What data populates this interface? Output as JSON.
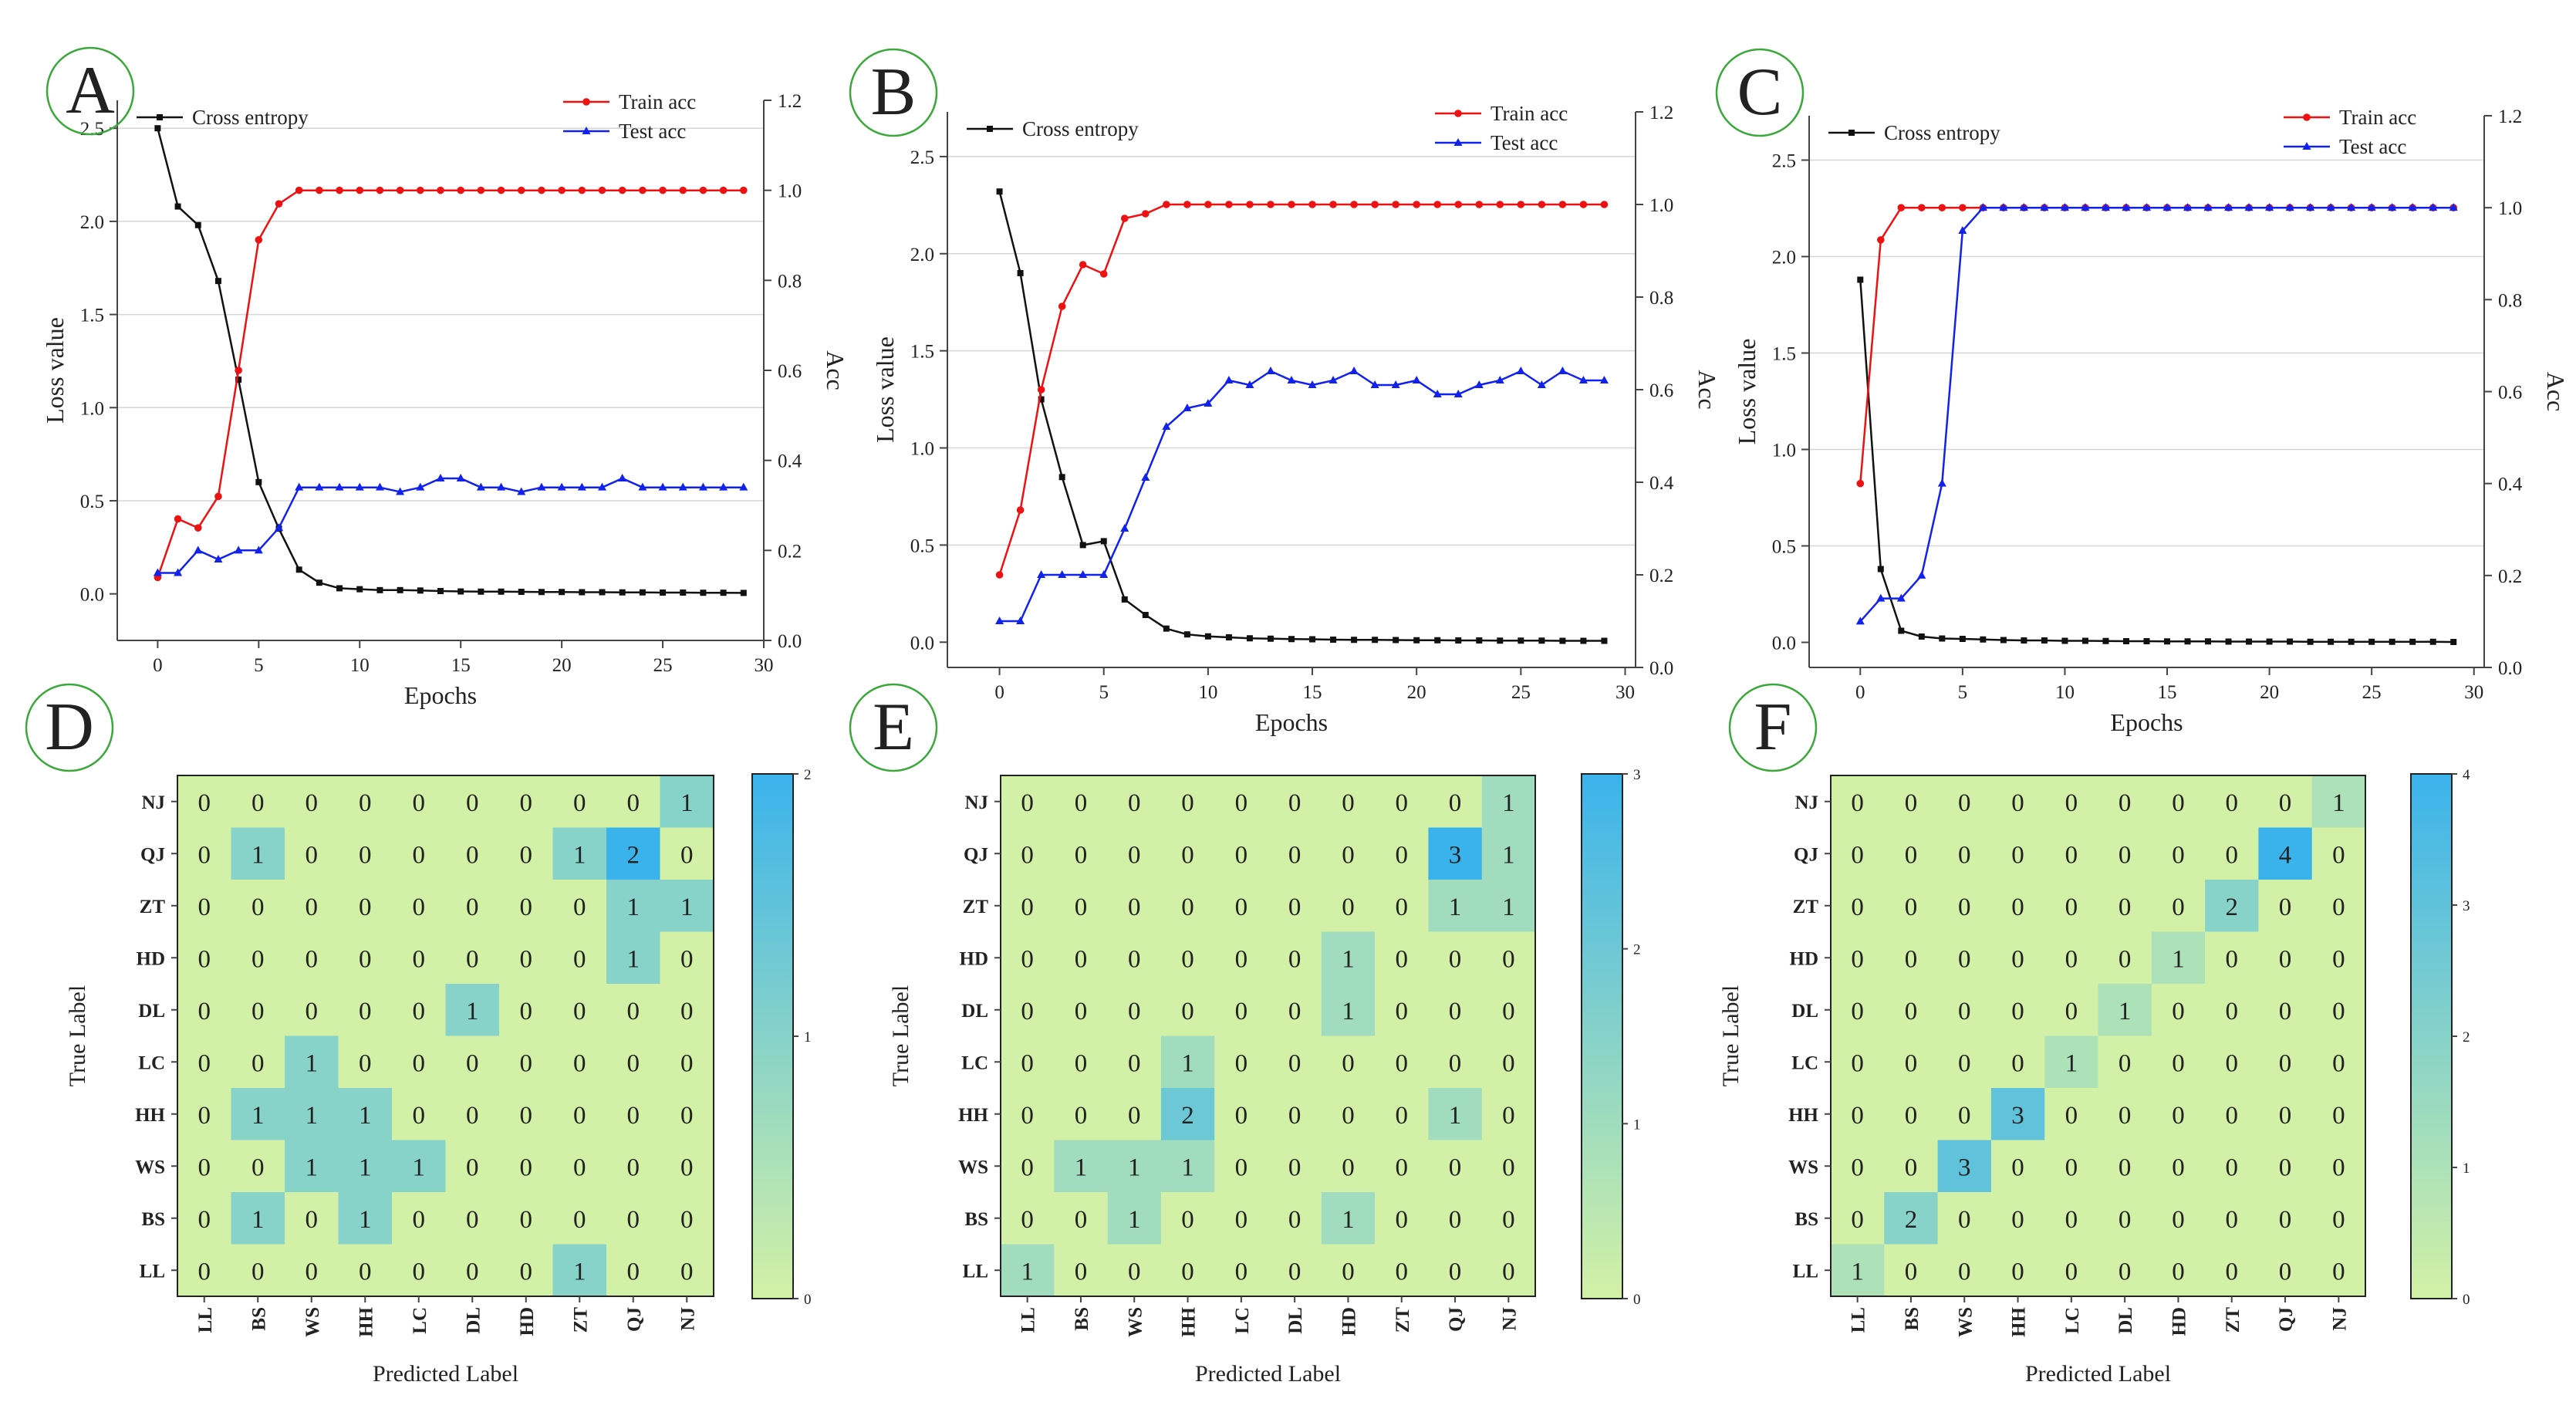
{
  "colors": {
    "cross_entropy": "#111111",
    "train_acc": "#ee1111",
    "test_acc": "#1122ee",
    "axis": "#444444",
    "grid": "#d6d6d6",
    "heat_low": "#d3f1a6",
    "heat_high": "#3ab3ec",
    "panel_circle": "#3aa83a"
  },
  "chart_data": [
    {
      "type": "line",
      "panel": "A",
      "xlabel": "Epochs",
      "ylabel": "Loss value",
      "y2label": "Acc",
      "xlim": [
        -2,
        30
      ],
      "xticks": [
        0,
        5,
        10,
        15,
        20,
        25,
        30
      ],
      "ylim": [
        -0.25,
        2.65
      ],
      "yticks": [
        0.0,
        0.5,
        1.0,
        1.5,
        2.0,
        2.5
      ],
      "y2lim": [
        0.0,
        1.2
      ],
      "y2ticks": [
        0.0,
        0.2,
        0.4,
        0.6,
        0.8,
        1.0,
        1.2
      ],
      "legend_left": [
        "Cross entropy"
      ],
      "legend_right": [
        "Train acc",
        "Test acc"
      ],
      "series": [
        {
          "name": "Cross entropy",
          "axis": "left",
          "values": [
            2.5,
            2.08,
            1.98,
            1.68,
            1.15,
            0.6,
            0.35,
            0.13,
            0.06,
            0.03,
            0.025,
            0.02,
            0.02,
            0.018,
            0.015,
            0.013,
            0.012,
            0.012,
            0.011,
            0.01,
            0.01,
            0.009,
            0.009,
            0.008,
            0.008,
            0.007,
            0.007,
            0.006,
            0.006,
            0.005
          ]
        },
        {
          "name": "Train acc",
          "axis": "right",
          "values": [
            0.14,
            0.27,
            0.25,
            0.32,
            0.6,
            0.89,
            0.97,
            1,
            1,
            1,
            1,
            1,
            1,
            1,
            1,
            1,
            1,
            1,
            1,
            1,
            1,
            1,
            1,
            1,
            1,
            1,
            1,
            1,
            1,
            1
          ]
        },
        {
          "name": "Test acc",
          "axis": "right",
          "values": [
            0.15,
            0.15,
            0.2,
            0.18,
            0.2,
            0.2,
            0.25,
            0.34,
            0.34,
            0.34,
            0.34,
            0.34,
            0.33,
            0.34,
            0.36,
            0.36,
            0.34,
            0.34,
            0.33,
            0.34,
            0.34,
            0.34,
            0.34,
            0.36,
            0.34,
            0.34,
            0.34,
            0.34,
            0.34,
            0.34
          ]
        }
      ]
    },
    {
      "type": "line",
      "panel": "B",
      "xlabel": "Epochs",
      "ylabel": "Loss value",
      "y2label": "Acc",
      "xlim": [
        -2.5,
        30.5
      ],
      "xticks": [
        0,
        5,
        10,
        15,
        20,
        25,
        30
      ],
      "ylim": [
        -0.13,
        2.73
      ],
      "yticks": [
        0.0,
        0.5,
        1.0,
        1.5,
        2.0,
        2.5
      ],
      "y2lim": [
        0.0,
        1.2
      ],
      "y2ticks": [
        0.0,
        0.2,
        0.4,
        0.6,
        0.8,
        1.0,
        1.2
      ],
      "legend_left": [
        "Cross entropy"
      ],
      "legend_right": [
        "Train acc",
        "Test acc"
      ],
      "series": [
        {
          "name": "Cross entropy",
          "axis": "left",
          "values": [
            2.32,
            1.9,
            1.25,
            0.85,
            0.5,
            0.52,
            0.22,
            0.14,
            0.07,
            0.04,
            0.03,
            0.025,
            0.02,
            0.018,
            0.016,
            0.015,
            0.013,
            0.012,
            0.012,
            0.011,
            0.01,
            0.01,
            0.009,
            0.009,
            0.008,
            0.008,
            0.008,
            0.007,
            0.007,
            0.007
          ]
        },
        {
          "name": "Train acc",
          "axis": "right",
          "values": [
            0.2,
            0.34,
            0.6,
            0.78,
            0.87,
            0.85,
            0.97,
            0.98,
            1,
            1,
            1,
            1,
            1,
            1,
            1,
            1,
            1,
            1,
            1,
            1,
            1,
            1,
            1,
            1,
            1,
            1,
            1,
            1,
            1,
            1
          ]
        },
        {
          "name": "Test acc",
          "axis": "right",
          "values": [
            0.1,
            0.1,
            0.2,
            0.2,
            0.2,
            0.2,
            0.3,
            0.41,
            0.52,
            0.56,
            0.57,
            0.62,
            0.61,
            0.64,
            0.62,
            0.61,
            0.62,
            0.64,
            0.61,
            0.61,
            0.62,
            0.59,
            0.59,
            0.61,
            0.62,
            0.64,
            0.61,
            0.64,
            0.62,
            0.62
          ]
        }
      ]
    },
    {
      "type": "line",
      "panel": "C",
      "xlabel": "Epochs",
      "ylabel": "Loss value",
      "y2label": "Acc",
      "xlim": [
        -2.5,
        30.5
      ],
      "xticks": [
        0,
        5,
        10,
        15,
        20,
        25,
        30
      ],
      "ylim": [
        -0.13,
        2.73
      ],
      "yticks": [
        0.0,
        0.5,
        1.0,
        1.5,
        2.0,
        2.5
      ],
      "y2lim": [
        0.0,
        1.2
      ],
      "y2ticks": [
        0.0,
        0.2,
        0.4,
        0.6,
        0.8,
        1.0,
        1.2
      ],
      "legend_left": [
        "Cross entropy"
      ],
      "legend_right": [
        "Train acc",
        "Test acc"
      ],
      "series": [
        {
          "name": "Cross entropy",
          "axis": "left",
          "values": [
            1.88,
            0.38,
            0.06,
            0.03,
            0.02,
            0.018,
            0.015,
            0.012,
            0.01,
            0.01,
            0.008,
            0.008,
            0.007,
            0.006,
            0.006,
            0.005,
            0.005,
            0.005,
            0.004,
            0.004,
            0.004,
            0.004,
            0.003,
            0.003,
            0.003,
            0.003,
            0.003,
            0.003,
            0.003,
            0.002
          ]
        },
        {
          "name": "Train acc",
          "axis": "right",
          "values": [
            0.4,
            0.93,
            1,
            1,
            1,
            1,
            1,
            1,
            1,
            1,
            1,
            1,
            1,
            1,
            1,
            1,
            1,
            1,
            1,
            1,
            1,
            1,
            1,
            1,
            1,
            1,
            1,
            1,
            1,
            1
          ]
        },
        {
          "name": "Test acc",
          "axis": "right",
          "values": [
            0.1,
            0.15,
            0.15,
            0.2,
            0.4,
            0.95,
            1,
            1,
            1,
            1,
            1,
            1,
            1,
            1,
            1,
            1,
            1,
            1,
            1,
            1,
            1,
            1,
            1,
            1,
            1,
            1,
            1,
            1,
            1,
            1
          ]
        }
      ]
    },
    {
      "type": "heatmap",
      "panel": "D",
      "xlabel": "Predicted Label",
      "ylabel": "True Label",
      "rows": [
        "NJ",
        "QJ",
        "ZT",
        "HD",
        "DL",
        "LC",
        "HH",
        "WS",
        "BS",
        "LL"
      ],
      "cols": [
        "LL",
        "BS",
        "WS",
        "HH",
        "LC",
        "DL",
        "HD",
        "ZT",
        "QJ",
        "NJ"
      ],
      "colorbar_max": 2,
      "colorbar_ticks": [
        0,
        1,
        2
      ],
      "values": [
        [
          0,
          0,
          0,
          0,
          0,
          0,
          0,
          0,
          0,
          1
        ],
        [
          0,
          1,
          0,
          0,
          0,
          0,
          0,
          1,
          2,
          0
        ],
        [
          0,
          0,
          0,
          0,
          0,
          0,
          0,
          0,
          1,
          1
        ],
        [
          0,
          0,
          0,
          0,
          0,
          0,
          0,
          0,
          1,
          0
        ],
        [
          0,
          0,
          0,
          0,
          0,
          1,
          0,
          0,
          0,
          0
        ],
        [
          0,
          0,
          1,
          0,
          0,
          0,
          0,
          0,
          0,
          0
        ],
        [
          0,
          1,
          1,
          1,
          0,
          0,
          0,
          0,
          0,
          0
        ],
        [
          0,
          0,
          1,
          1,
          1,
          0,
          0,
          0,
          0,
          0
        ],
        [
          0,
          1,
          0,
          1,
          0,
          0,
          0,
          0,
          0,
          0
        ],
        [
          0,
          0,
          0,
          0,
          0,
          0,
          0,
          1,
          0,
          0
        ]
      ]
    },
    {
      "type": "heatmap",
      "panel": "E",
      "xlabel": "Predicted Label",
      "ylabel": "True Label",
      "rows": [
        "NJ",
        "QJ",
        "ZT",
        "HD",
        "DL",
        "LC",
        "HH",
        "WS",
        "BS",
        "LL"
      ],
      "cols": [
        "LL",
        "BS",
        "WS",
        "HH",
        "LC",
        "DL",
        "HD",
        "ZT",
        "QJ",
        "NJ"
      ],
      "colorbar_max": 3,
      "colorbar_ticks": [
        0,
        1,
        2,
        3
      ],
      "values": [
        [
          0,
          0,
          0,
          0,
          0,
          0,
          0,
          0,
          0,
          1
        ],
        [
          0,
          0,
          0,
          0,
          0,
          0,
          0,
          0,
          3,
          1
        ],
        [
          0,
          0,
          0,
          0,
          0,
          0,
          0,
          0,
          1,
          1
        ],
        [
          0,
          0,
          0,
          0,
          0,
          0,
          1,
          0,
          0,
          0
        ],
        [
          0,
          0,
          0,
          0,
          0,
          0,
          1,
          0,
          0,
          0
        ],
        [
          0,
          0,
          0,
          1,
          0,
          0,
          0,
          0,
          0,
          0
        ],
        [
          0,
          0,
          0,
          2,
          0,
          0,
          0,
          0,
          1,
          0
        ],
        [
          0,
          1,
          1,
          1,
          0,
          0,
          0,
          0,
          0,
          0
        ],
        [
          0,
          0,
          1,
          0,
          0,
          0,
          1,
          0,
          0,
          0
        ],
        [
          1,
          0,
          0,
          0,
          0,
          0,
          0,
          0,
          0,
          0
        ]
      ]
    },
    {
      "type": "heatmap",
      "panel": "F",
      "xlabel": "Predicted Label",
      "ylabel": "True Label",
      "rows": [
        "NJ",
        "QJ",
        "ZT",
        "HD",
        "DL",
        "LC",
        "HH",
        "WS",
        "BS",
        "LL"
      ],
      "cols": [
        "LL",
        "BS",
        "WS",
        "HH",
        "LC",
        "DL",
        "HD",
        "ZT",
        "QJ",
        "NJ"
      ],
      "colorbar_max": 4,
      "colorbar_ticks": [
        0,
        1,
        2,
        3,
        4
      ],
      "values": [
        [
          0,
          0,
          0,
          0,
          0,
          0,
          0,
          0,
          0,
          1
        ],
        [
          0,
          0,
          0,
          0,
          0,
          0,
          0,
          0,
          4,
          0
        ],
        [
          0,
          0,
          0,
          0,
          0,
          0,
          0,
          2,
          0,
          0
        ],
        [
          0,
          0,
          0,
          0,
          0,
          0,
          1,
          0,
          0,
          0
        ],
        [
          0,
          0,
          0,
          0,
          0,
          1,
          0,
          0,
          0,
          0
        ],
        [
          0,
          0,
          0,
          0,
          1,
          0,
          0,
          0,
          0,
          0
        ],
        [
          0,
          0,
          0,
          3,
          0,
          0,
          0,
          0,
          0,
          0
        ],
        [
          0,
          0,
          3,
          0,
          0,
          0,
          0,
          0,
          0,
          0
        ],
        [
          0,
          2,
          0,
          0,
          0,
          0,
          0,
          0,
          0,
          0
        ],
        [
          1,
          0,
          0,
          0,
          0,
          0,
          0,
          0,
          0,
          0
        ]
      ]
    }
  ]
}
